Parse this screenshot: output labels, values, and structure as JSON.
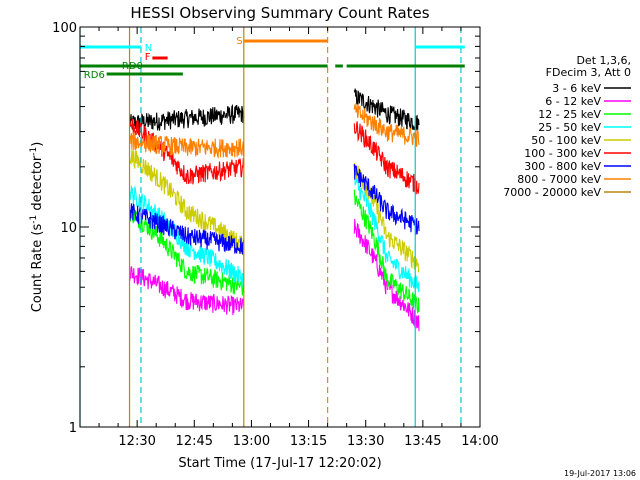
{
  "chart_data": {
    "type": "line",
    "title": "HESSI Observing Summary Count Rates",
    "xlabel": "Start Time (17-Jul-17 12:20:02)",
    "ylabel_main": "Count Rate (s",
    "ylabel_sup1": "-1",
    "ylabel_mid": " detector",
    "ylabel_sup2": "-1",
    "ylabel_end": ")",
    "footer": "19-Jul-2017 13:06",
    "y_scale": "log",
    "xlim_minutes": [
      -5,
      100
    ],
    "ylim": [
      1,
      100
    ],
    "x_ticks": [
      {
        "label": "12:30",
        "min": 10
      },
      {
        "label": "12:45",
        "min": 25
      },
      {
        "label": "13:00",
        "min": 40
      },
      {
        "label": "13:15",
        "min": 55
      },
      {
        "label": "13:30",
        "min": 70
      },
      {
        "label": "13:45",
        "min": 85
      },
      {
        "label": "14:00",
        "min": 100
      }
    ],
    "y_ticks": [
      {
        "label": "1",
        "value": 1
      },
      {
        "label": "10",
        "value": 10
      },
      {
        "label": "100",
        "value": 100
      }
    ],
    "legend_header": [
      "Det 1,3,6,",
      "FDecim 3, Att 0"
    ],
    "series": [
      {
        "name": "3 - 6 keV",
        "color": "#000000",
        "seg1": [
          33,
          35,
          37
        ],
        "seg2": [
          45,
          37,
          33
        ]
      },
      {
        "name": "6 - 12 keV",
        "color": "#ff00ff",
        "seg1": [
          6,
          4.3,
          4
        ],
        "seg2": [
          10,
          5,
          3.3
        ]
      },
      {
        "name": "12 - 25 keV",
        "color": "#00ff00",
        "seg1": [
          12,
          6,
          5
        ],
        "seg2": [
          14,
          5.5,
          4
        ]
      },
      {
        "name": "25 - 50 keV",
        "color": "#00ffff",
        "seg1": [
          15,
          8,
          5.5
        ],
        "seg2": [
          17,
          7,
          5
        ]
      },
      {
        "name": "50 - 100 keV",
        "color": "#cccc00",
        "seg1": [
          23,
          12,
          8
        ],
        "seg2": [
          20,
          9,
          6.5
        ]
      },
      {
        "name": "100 - 300 keV",
        "color": "#ff0000",
        "seg1": [
          33,
          18,
          20
        ],
        "seg2": [
          32,
          20,
          16
        ]
      },
      {
        "name": "300 - 800 keV",
        "color": "#0000ff",
        "seg1": [
          12,
          9,
          8
        ],
        "seg2": [
          19,
          12,
          10
        ]
      },
      {
        "name": "800 - 7000 keV",
        "color": "#ff8000",
        "seg1": [
          27,
          25,
          25
        ],
        "seg2": [
          38,
          30,
          28
        ]
      },
      {
        "name": "7000 - 20000 keV",
        "color": "#b8860b",
        "seg1": [
          null,
          null,
          null
        ],
        "seg2": [
          null,
          null,
          null
        ]
      }
    ],
    "seg1_minutes": [
      8,
      38
    ],
    "seg2_minutes": [
      67,
      84
    ],
    "vertical_lines": [
      {
        "min": -5,
        "color": "#00cccc",
        "dashed": false
      },
      {
        "min": 11,
        "color": "#00cccc",
        "dashed": true
      },
      {
        "min": 83,
        "color": "#00cccc",
        "dashed": false
      },
      {
        "min": 95,
        "color": "#00cccc",
        "dashed": true
      },
      {
        "min": 8,
        "color": "#b8860b",
        "dashed": false
      },
      {
        "min": 38,
        "color": "#b8860b",
        "dashed": false
      },
      {
        "min": 60,
        "color": "#ff8000",
        "dashed": true
      }
    ],
    "flag_bars": [
      {
        "label": "N",
        "color": "#00ffff",
        "segments": [
          [
            -5,
            11
          ],
          [
            83,
            96
          ]
        ],
        "label_min": 12
      },
      {
        "label": "S",
        "color": "#ff8000",
        "segments": [
          [
            38,
            60
          ]
        ],
        "label_min": 36
      },
      {
        "label": "F",
        "color": "#ff0000",
        "segments": [
          [
            14,
            18
          ]
        ],
        "label_min": 12
      },
      {
        "label": "RD0",
        "color": "#008000",
        "segments": [
          [
            -5,
            60
          ],
          [
            62,
            64
          ],
          [
            65,
            96
          ]
        ],
        "label_min": 6
      },
      {
        "label": "RD6",
        "color": "#008000",
        "segments": [
          [
            2,
            22
          ]
        ],
        "label_min": -4
      }
    ]
  }
}
